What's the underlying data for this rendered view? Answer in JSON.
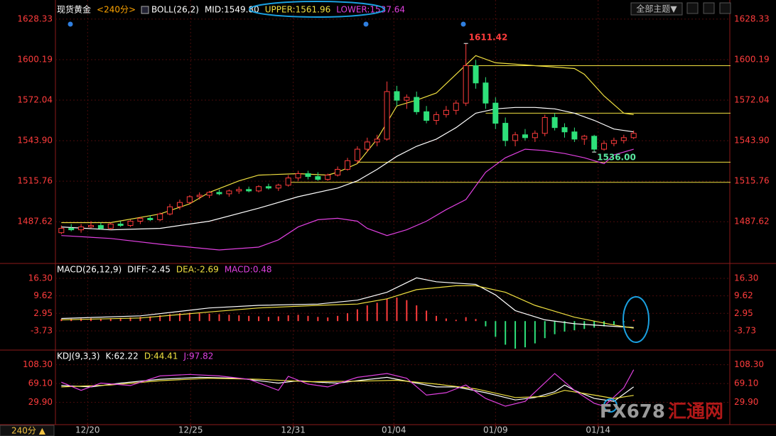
{
  "chart_data": [
    {
      "type": "candlestick",
      "title": "现货黄金",
      "period": "<240分>",
      "indicator": "BOLL(26,2)",
      "xlim": [
        -0.6,
        67.6
      ],
      "xticks": [
        {
          "value": 2.66,
          "label": "12/20"
        },
        {
          "value": 13.1,
          "label": "12/25"
        },
        {
          "value": 23.5,
          "label": "12/31"
        },
        {
          "value": 33.7,
          "label": "01/04"
        },
        {
          "value": 44.0,
          "label": "01/09"
        },
        {
          "value": 54.4,
          "label": "01/14"
        }
      ],
      "ylim": [
        1459.13,
        1637.66
      ],
      "yticks": [
        1628.33,
        1600.19,
        1572.04,
        {
          "value": 1543.9,
          "label": "1543.90"
        },
        1515.76,
        1487.62
      ],
      "up_color": "#ff3c3c",
      "down_color": "#2ee07a",
      "open": [
        1480,
        1483,
        1482,
        1484,
        1485,
        1483,
        1486,
        1485,
        1488,
        1490,
        1489,
        1493,
        1498,
        1501,
        1505,
        1506,
        1508,
        1507,
        1509,
        1510,
        1509,
        1512,
        1511,
        1513,
        1518,
        1521,
        1519,
        1517,
        1520,
        1524,
        1530,
        1538,
        1543,
        1545,
        1578,
        1572,
        1574,
        1564,
        1558,
        1562,
        1565,
        1570,
        1596,
        1584,
        1570,
        1556,
        1544,
        1548,
        1546,
        1549,
        1560,
        1553,
        1550,
        1545,
        1547,
        1538,
        1542,
        1544,
        1546
      ],
      "high": [
        1485,
        1486,
        1486,
        1488,
        1487,
        1487,
        1488,
        1489,
        1491,
        1492,
        1494,
        1500,
        1503,
        1506,
        1508,
        1509,
        1510,
        1510,
        1512,
        1512,
        1513,
        1514,
        1514,
        1520,
        1523,
        1523,
        1522,
        1521,
        1526,
        1532,
        1540,
        1546,
        1548,
        1585,
        1582,
        1576,
        1578,
        1568,
        1564,
        1568,
        1572,
        1611.42,
        1600,
        1588,
        1574,
        1560,
        1550,
        1552,
        1551,
        1562,
        1563,
        1556,
        1553,
        1548,
        1548,
        1544,
        1546,
        1548,
        1551
      ],
      "low": [
        1479,
        1481,
        1480,
        1483,
        1482,
        1482,
        1484,
        1484,
        1486,
        1488,
        1488,
        1492,
        1496,
        1500,
        1503,
        1504,
        1506,
        1505,
        1507,
        1508,
        1508,
        1510,
        1509,
        1512,
        1516,
        1517,
        1516,
        1516,
        1519,
        1523,
        1528,
        1536,
        1540,
        1544,
        1568,
        1566,
        1562,
        1556,
        1555,
        1560,
        1562,
        1568,
        1580,
        1566,
        1552,
        1540,
        1540,
        1544,
        1543,
        1547,
        1551,
        1546,
        1543,
        1541,
        1536,
        1537,
        1540,
        1542,
        1545
      ],
      "close": [
        1483,
        1482,
        1484,
        1485,
        1483,
        1486,
        1485,
        1488,
        1490,
        1489,
        1493,
        1498,
        1501,
        1505,
        1506,
        1508,
        1507,
        1509,
        1510,
        1509,
        1512,
        1511,
        1513,
        1518,
        1521,
        1519,
        1517,
        1520,
        1524,
        1530,
        1538,
        1543,
        1545,
        1578,
        1572,
        1574,
        1564,
        1558,
        1562,
        1565,
        1570,
        1596,
        1584,
        1570,
        1556,
        1544,
        1548,
        1546,
        1549,
        1560,
        1553,
        1550,
        1545,
        1547,
        1538,
        1542,
        1544,
        1546,
        1549
      ],
      "series": [
        {
          "name": "MID:1549.80",
          "color": "#ffffff",
          "x": [
            0,
            5,
            10,
            15,
            20,
            24,
            28,
            30,
            32,
            34,
            36,
            38,
            40,
            42,
            44,
            46,
            48,
            50,
            52,
            54,
            56,
            58
          ],
          "values": [
            1484,
            1482,
            1483,
            1488,
            1497,
            1505,
            1511,
            1516,
            1524,
            1533,
            1540,
            1545,
            1553,
            1563,
            1566,
            1567,
            1567,
            1566,
            1563,
            1558,
            1552,
            1550
          ]
        },
        {
          "name": "UPPER:1561.96",
          "color": "#f0e040",
          "x": [
            0,
            5,
            10,
            13,
            15,
            18,
            20,
            24,
            27,
            28,
            30,
            32,
            34,
            36,
            38,
            40,
            42,
            44,
            46,
            48,
            50,
            52,
            53,
            55,
            57,
            58
          ],
          "values": [
            1487,
            1487,
            1493,
            1500,
            1508,
            1516,
            1520,
            1521,
            1520,
            1522,
            1528,
            1545,
            1568,
            1572,
            1577,
            1590,
            1603,
            1598,
            1597,
            1596,
            1595,
            1594,
            1590,
            1575,
            1563,
            1562
          ]
        },
        {
          "name": "LOWER:1537.64",
          "color": "#e040e0",
          "x": [
            0,
            5,
            10,
            13,
            16,
            20,
            22,
            24,
            26,
            28,
            30,
            31,
            33,
            35,
            37,
            39,
            41,
            43,
            45,
            47,
            49,
            51,
            53,
            55,
            56,
            58
          ],
          "values": [
            1478,
            1476,
            1472,
            1470,
            1468,
            1470,
            1475,
            1484,
            1489,
            1490,
            1488,
            1483,
            1478,
            1482,
            1488,
            1496,
            1503,
            1522,
            1532,
            1538,
            1537,
            1535,
            1532,
            1528,
            1534,
            1538
          ]
        }
      ],
      "hlines": [
        {
          "y": 1596,
          "x": 41
        },
        {
          "y": 1563,
          "x": 43
        },
        {
          "y": 1529,
          "x": 30
        },
        {
          "y": 1515,
          "x": 23
        }
      ],
      "hline_color": "#f0e040",
      "annotations": [
        {
          "x": 41,
          "y": 1611.42,
          "label": "1611.42",
          "color": "#ff3c3c"
        },
        {
          "x": 54,
          "y": 1536,
          "label": "1536.00",
          "color": "#5ae6a0"
        }
      ]
    },
    {
      "type": "macd",
      "title": "MACD(26,12,9)",
      "ylim": [
        -10.78,
        21.72
      ],
      "yticks": [
        {
          "value": 16.3,
          "label": "16.30"
        },
        9.62,
        2.95,
        -3.73
      ],
      "histogram": {
        "name": "MACD:0.48",
        "color": "#e040e0",
        "up_color": "#ff3c3c",
        "down_color": "#2ee07a",
        "values": [
          0.8,
          0.9,
          1.0,
          1.1,
          0.9,
          1.0,
          1.2,
          1.4,
          1.6,
          1.8,
          2.2,
          2.6,
          3.0,
          3.2,
          3.0,
          2.8,
          2.6,
          2.4,
          2.2,
          2.0,
          1.8,
          1.6,
          1.8,
          2.2,
          2.4,
          2.0,
          1.6,
          1.4,
          2.0,
          3.0,
          4.5,
          6.0,
          7.0,
          8.5,
          9.0,
          8.0,
          6.0,
          4.0,
          2.0,
          1.0,
          0.5,
          1.5,
          0.8,
          -2.0,
          -6.0,
          -9.0,
          -10.5,
          -10.0,
          -8.5,
          -6.5,
          -5.0,
          -4.0,
          -3.5,
          -3.0,
          -2.5,
          -2.0,
          -1.5,
          -0.5,
          0.48
        ]
      },
      "series": [
        {
          "name": "DIFF:-2.45",
          "color": "#ffffff",
          "x": [
            0,
            8,
            15,
            20,
            26,
            30,
            33,
            36,
            38,
            40,
            42,
            44,
            46,
            49,
            52,
            56,
            58
          ],
          "values": [
            1.0,
            2.0,
            5.0,
            6.0,
            6.5,
            8.0,
            11.0,
            16.5,
            15.0,
            14.5,
            14.0,
            10.0,
            4.0,
            0.5,
            -1.0,
            -2.0,
            -2.45
          ]
        },
        {
          "name": "DEA:-2.69",
          "color": "#f0e040",
          "x": [
            0,
            8,
            15,
            20,
            26,
            30,
            33,
            36,
            40,
            42,
            45,
            48,
            52,
            56,
            58
          ],
          "values": [
            0.5,
            1.2,
            3.5,
            5.0,
            6.0,
            6.5,
            8.5,
            12.0,
            13.5,
            13.5,
            11.0,
            6.0,
            1.5,
            -1.5,
            -2.69
          ]
        }
      ]
    },
    {
      "type": "line",
      "title": "KDJ(9,3,3)",
      "ylim": [
        -16.5,
        137.3
      ],
      "yticks": [
        {
          "value": 108.3,
          "label": "108.30"
        },
        {
          "value": 69.1,
          "label": "69.10"
        },
        {
          "value": 29.9,
          "label": "29.90"
        }
      ],
      "series": [
        {
          "name": "K:62.22",
          "color": "#ffffff",
          "x": [
            0,
            3,
            6,
            10,
            14,
            18,
            22,
            24,
            26,
            28,
            30,
            33,
            36,
            38,
            40,
            43,
            46,
            48,
            50,
            51,
            52,
            54,
            56,
            58
          ],
          "values": [
            65,
            62,
            70,
            78,
            82,
            80,
            70,
            75,
            72,
            70,
            75,
            82,
            70,
            62,
            62,
            50,
            35,
            40,
            52,
            66,
            55,
            38,
            32,
            62.22
          ]
        },
        {
          "name": "D:44.41",
          "color": "#f0e040",
          "x": [
            0,
            5,
            10,
            15,
            20,
            25,
            30,
            34,
            38,
            42,
            46,
            49,
            51,
            54,
            56,
            58
          ],
          "values": [
            62,
            66,
            75,
            80,
            78,
            73,
            74,
            76,
            68,
            58,
            40,
            42,
            55,
            45,
            38,
            44.41
          ]
        },
        {
          "name": "J:97.82",
          "color": "#e040e0",
          "x": [
            0,
            2,
            4,
            7,
            10,
            13,
            16,
            19,
            22,
            23,
            25,
            27,
            30,
            33,
            35,
            37,
            39,
            41,
            43,
            45,
            47,
            50,
            52,
            54,
            55,
            57,
            58
          ],
          "values": [
            72,
            55,
            70,
            65,
            85,
            88,
            85,
            78,
            55,
            84,
            68,
            62,
            82,
            90,
            80,
            45,
            50,
            66,
            38,
            22,
            32,
            90,
            55,
            28,
            22,
            60,
            97.82
          ]
        }
      ]
    }
  ],
  "toolbar": {
    "theme": "全部主题▼"
  },
  "footer": {
    "period": "240分 ▲"
  },
  "watermark": {
    "brand": "FX678",
    "name": "汇通网"
  }
}
